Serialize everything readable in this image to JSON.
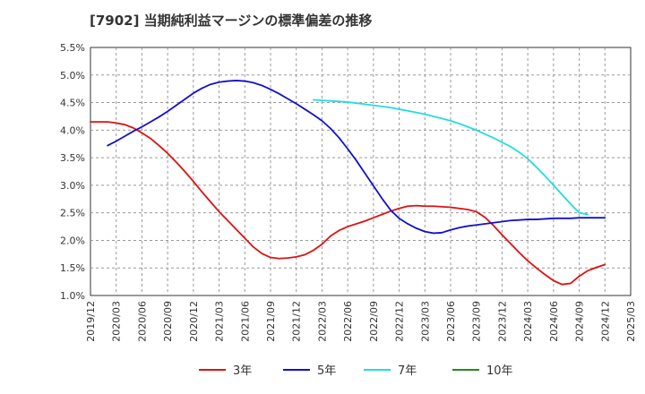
{
  "chart_data": {
    "type": "line",
    "title": "[7902]  当期純利益マージンの標準偏差の推移",
    "xlabel": "",
    "ylabel": "",
    "y_ticks": [
      "1.0%",
      "1.5%",
      "2.0%",
      "2.5%",
      "3.0%",
      "3.5%",
      "4.0%",
      "4.5%",
      "5.0%",
      "5.5%"
    ],
    "ylim": [
      1.0,
      5.5
    ],
    "x_ticks": [
      "2019/12",
      "2020/03",
      "2020/06",
      "2020/09",
      "2020/12",
      "2021/03",
      "2021/06",
      "2021/09",
      "2021/12",
      "2022/03",
      "2022/06",
      "2022/09",
      "2022/12",
      "2023/03",
      "2023/06",
      "2023/09",
      "2023/12",
      "2024/03",
      "2024/06",
      "2024/09",
      "2024/12",
      "2025/03"
    ],
    "grid": true,
    "legend_position": "bottom",
    "series": [
      {
        "name": "3年",
        "color": "#dd1111",
        "points": [
          [
            "2019/12",
            4.15
          ],
          [
            "2020/01",
            4.15
          ],
          [
            "2020/02",
            4.15
          ],
          [
            "2020/03",
            4.13
          ],
          [
            "2020/04",
            4.1
          ],
          [
            "2020/05",
            4.04
          ],
          [
            "2020/06",
            3.95
          ],
          [
            "2020/07",
            3.85
          ],
          [
            "2020/08",
            3.72
          ],
          [
            "2020/09",
            3.58
          ],
          [
            "2020/10",
            3.42
          ],
          [
            "2020/11",
            3.25
          ],
          [
            "2020/12",
            3.07
          ],
          [
            "2021/01",
            2.88
          ],
          [
            "2021/02",
            2.7
          ],
          [
            "2021/03",
            2.52
          ],
          [
            "2021/04",
            2.36
          ],
          [
            "2021/05",
            2.2
          ],
          [
            "2021/06",
            2.04
          ],
          [
            "2021/07",
            1.88
          ],
          [
            "2021/08",
            1.76
          ],
          [
            "2021/09",
            1.69
          ],
          [
            "2021/10",
            1.67
          ],
          [
            "2021/11",
            1.68
          ],
          [
            "2021/12",
            1.7
          ],
          [
            "2022/01",
            1.74
          ],
          [
            "2022/02",
            1.82
          ],
          [
            "2022/03",
            1.93
          ],
          [
            "2022/04",
            2.08
          ],
          [
            "2022/05",
            2.18
          ],
          [
            "2022/06",
            2.25
          ],
          [
            "2022/07",
            2.3
          ],
          [
            "2022/08",
            2.35
          ],
          [
            "2022/09",
            2.41
          ],
          [
            "2022/10",
            2.47
          ],
          [
            "2022/11",
            2.53
          ],
          [
            "2022/12",
            2.58
          ],
          [
            "2023/01",
            2.62
          ],
          [
            "2023/02",
            2.63
          ],
          [
            "2023/03",
            2.62
          ],
          [
            "2023/04",
            2.62
          ],
          [
            "2023/05",
            2.61
          ],
          [
            "2023/06",
            2.6
          ],
          [
            "2023/07",
            2.58
          ],
          [
            "2023/08",
            2.56
          ],
          [
            "2023/09",
            2.52
          ],
          [
            "2023/10",
            2.42
          ],
          [
            "2023/11",
            2.27
          ],
          [
            "2023/12",
            2.1
          ],
          [
            "2024/01",
            1.94
          ],
          [
            "2024/02",
            1.78
          ],
          [
            "2024/03",
            1.63
          ],
          [
            "2024/04",
            1.5
          ],
          [
            "2024/05",
            1.38
          ],
          [
            "2024/06",
            1.27
          ],
          [
            "2024/07",
            1.2
          ],
          [
            "2024/08",
            1.22
          ],
          [
            "2024/09",
            1.35
          ],
          [
            "2024/10",
            1.45
          ],
          [
            "2024/11",
            1.51
          ],
          [
            "2024/12",
            1.56
          ]
        ]
      },
      {
        "name": "5年",
        "color": "#1111cc",
        "points": [
          [
            "2020/02",
            3.72
          ],
          [
            "2020/03",
            3.8
          ],
          [
            "2020/04",
            3.89
          ],
          [
            "2020/05",
            3.98
          ],
          [
            "2020/06",
            4.06
          ],
          [
            "2020/07",
            4.15
          ],
          [
            "2020/08",
            4.24
          ],
          [
            "2020/09",
            4.34
          ],
          [
            "2020/10",
            4.45
          ],
          [
            "2020/11",
            4.56
          ],
          [
            "2020/12",
            4.67
          ],
          [
            "2021/01",
            4.76
          ],
          [
            "2021/02",
            4.83
          ],
          [
            "2021/03",
            4.87
          ],
          [
            "2021/04",
            4.89
          ],
          [
            "2021/05",
            4.9
          ],
          [
            "2021/06",
            4.89
          ],
          [
            "2021/07",
            4.86
          ],
          [
            "2021/08",
            4.81
          ],
          [
            "2021/09",
            4.74
          ],
          [
            "2021/10",
            4.66
          ],
          [
            "2021/11",
            4.57
          ],
          [
            "2021/12",
            4.48
          ],
          [
            "2022/01",
            4.38
          ],
          [
            "2022/02",
            4.28
          ],
          [
            "2022/03",
            4.17
          ],
          [
            "2022/04",
            4.03
          ],
          [
            "2022/05",
            3.86
          ],
          [
            "2022/06",
            3.66
          ],
          [
            "2022/07",
            3.45
          ],
          [
            "2022/08",
            3.22
          ],
          [
            "2022/09",
            2.99
          ],
          [
            "2022/10",
            2.76
          ],
          [
            "2022/11",
            2.55
          ],
          [
            "2022/12",
            2.4
          ],
          [
            "2023/01",
            2.3
          ],
          [
            "2023/02",
            2.22
          ],
          [
            "2023/03",
            2.16
          ],
          [
            "2023/04",
            2.13
          ],
          [
            "2023/05",
            2.14
          ],
          [
            "2023/06",
            2.19
          ],
          [
            "2023/07",
            2.23
          ],
          [
            "2023/08",
            2.26
          ],
          [
            "2023/09",
            2.28
          ],
          [
            "2023/10",
            2.3
          ],
          [
            "2023/11",
            2.32
          ],
          [
            "2023/12",
            2.34
          ],
          [
            "2024/01",
            2.36
          ],
          [
            "2024/02",
            2.37
          ],
          [
            "2024/03",
            2.38
          ],
          [
            "2024/04",
            2.38
          ],
          [
            "2024/05",
            2.39
          ],
          [
            "2024/06",
            2.4
          ],
          [
            "2024/07",
            2.4
          ],
          [
            "2024/08",
            2.4
          ],
          [
            "2024/09",
            2.41
          ],
          [
            "2024/10",
            2.41
          ],
          [
            "2024/11",
            2.41
          ],
          [
            "2024/12",
            2.41
          ]
        ]
      },
      {
        "name": "7年",
        "color": "#22dddd",
        "points": [
          [
            "2022/02",
            4.55
          ],
          [
            "2022/03",
            4.54
          ],
          [
            "2022/04",
            4.53
          ],
          [
            "2022/05",
            4.52
          ],
          [
            "2022/06",
            4.51
          ],
          [
            "2022/07",
            4.49
          ],
          [
            "2022/08",
            4.47
          ],
          [
            "2022/09",
            4.45
          ],
          [
            "2022/10",
            4.43
          ],
          [
            "2022/11",
            4.41
          ],
          [
            "2022/12",
            4.38
          ],
          [
            "2023/01",
            4.35
          ],
          [
            "2023/02",
            4.32
          ],
          [
            "2023/03",
            4.29
          ],
          [
            "2023/04",
            4.25
          ],
          [
            "2023/05",
            4.21
          ],
          [
            "2023/06",
            4.17
          ],
          [
            "2023/07",
            4.12
          ],
          [
            "2023/08",
            4.06
          ],
          [
            "2023/09",
            4.0
          ],
          [
            "2023/10",
            3.93
          ],
          [
            "2023/11",
            3.86
          ],
          [
            "2023/12",
            3.78
          ],
          [
            "2024/01",
            3.7
          ],
          [
            "2024/02",
            3.6
          ],
          [
            "2024/03",
            3.48
          ],
          [
            "2024/04",
            3.33
          ],
          [
            "2024/05",
            3.17
          ],
          [
            "2024/06",
            3.0
          ],
          [
            "2024/07",
            2.83
          ],
          [
            "2024/08",
            2.66
          ],
          [
            "2024/09",
            2.5
          ],
          [
            "2024/10",
            2.47
          ]
        ]
      },
      {
        "name": "10年",
        "color": "#228b22",
        "points": []
      }
    ]
  }
}
